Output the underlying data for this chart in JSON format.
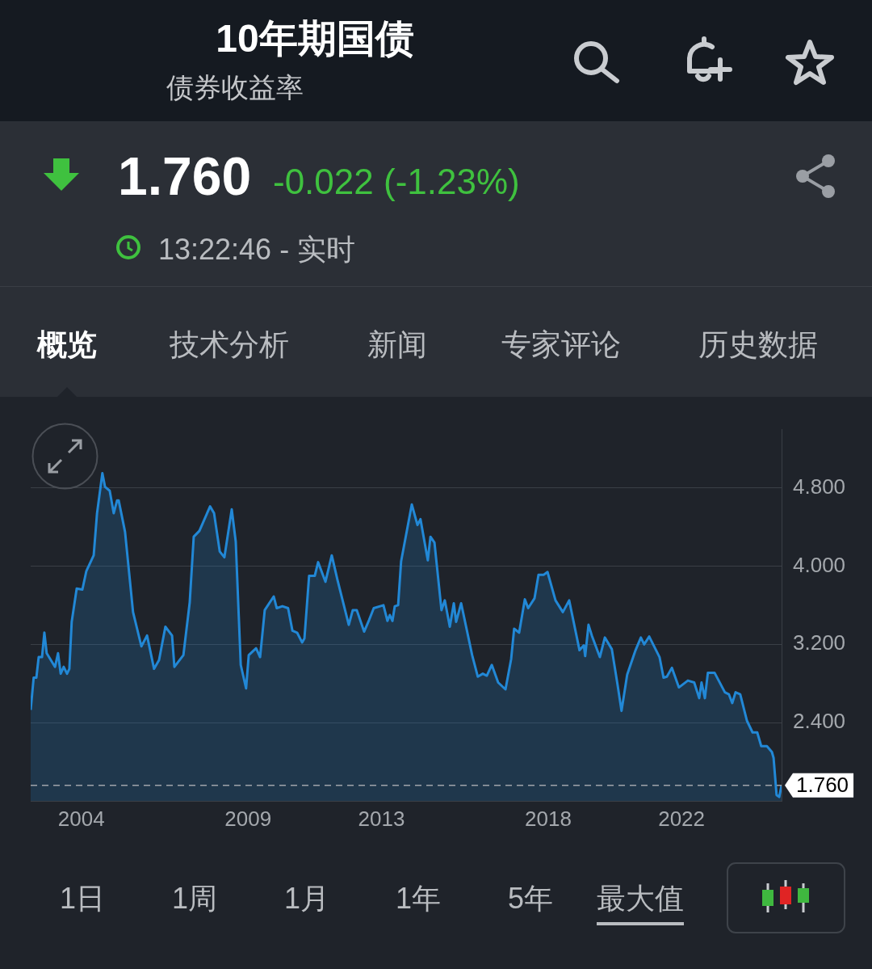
{
  "chart_data": {
    "type": "area",
    "title": "10年期国债",
    "subtitle": "债券收益率",
    "annotations": [
      "1.760",
      "-0.022 (-1.23%)",
      "13:22:46 - 实时",
      "概览",
      "技术分析",
      "新闻",
      "专家评论",
      "历史数据",
      "1日",
      "1周",
      "1月",
      "1年",
      "5年",
      "最大值"
    ],
    "x": [
      2002.48,
      2002.57,
      2002.65,
      2002.72,
      2002.82,
      2002.89,
      2002.96,
      2003.21,
      2003.3,
      2003.38,
      2003.47,
      2003.57,
      2003.64,
      2003.71,
      2003.86,
      2004.03,
      2004.15,
      2004.37,
      2004.47,
      2004.63,
      2004.71,
      2004.85,
      2004.97,
      2005.07,
      2005.12,
      2005.31,
      2005.55,
      2005.8,
      2005.97,
      2006.18,
      2006.33,
      2006.52,
      2006.72,
      2006.79,
      2007.06,
      2007.25,
      2007.37,
      2007.54,
      2007.86,
      2007.98,
      2008.15,
      2008.29,
      2008.51,
      2008.63,
      2008.78,
      2008.94,
      2009.02,
      2009.24,
      2009.36,
      2009.5,
      2009.77,
      2009.86,
      2010.03,
      2010.2,
      2010.33,
      2010.47,
      2010.62,
      2010.69,
      2010.83,
      2011.0,
      2011.1,
      2011.32,
      2011.51,
      2011.68,
      2012.02,
      2012.14,
      2012.26,
      2012.48,
      2012.63,
      2012.77,
      2013.06,
      2013.18,
      2013.25,
      2013.33,
      2013.4,
      2013.5,
      2013.59,
      2013.91,
      2014.08,
      2014.17,
      2014.39,
      2014.47,
      2014.59,
      2014.8,
      2014.9,
      2015.05,
      2015.17,
      2015.24,
      2015.39,
      2015.72,
      2015.89,
      2016.04,
      2016.16,
      2016.31,
      2016.5,
      2016.72,
      2016.89,
      2016.98,
      2017.13,
      2017.3,
      2017.4,
      2017.59,
      2017.71,
      2017.86,
      2017.98,
      2018.22,
      2018.44,
      2018.63,
      2018.94,
      2019.07,
      2019.11,
      2019.21,
      2019.31,
      2019.55,
      2019.7,
      2019.91,
      2020.08,
      2020.2,
      2020.37,
      2020.62,
      2020.78,
      2020.88,
      2021.03,
      2021.34,
      2021.46,
      2021.56,
      2021.71,
      2021.92,
      2022.19,
      2022.38,
      2022.53,
      2022.6,
      2022.7,
      2022.79,
      2022.99,
      2023.3,
      2023.42,
      2023.52,
      2023.62,
      2023.76,
      2023.96,
      2024.13,
      2024.27,
      2024.39,
      2024.56,
      2024.71,
      2024.76,
      2024.85,
      2024.93,
      2025.0
    ],
    "values": [
      2.53,
      2.86,
      2.86,
      3.07,
      3.07,
      3.32,
      3.11,
      2.97,
      3.11,
      2.9,
      2.97,
      2.9,
      2.95,
      3.43,
      3.77,
      3.76,
      3.95,
      4.11,
      4.54,
      4.95,
      4.81,
      4.77,
      4.54,
      4.67,
      4.67,
      4.35,
      3.53,
      3.18,
      3.29,
      2.95,
      3.04,
      3.38,
      3.29,
      2.97,
      3.09,
      3.63,
      4.3,
      4.36,
      4.61,
      4.54,
      4.15,
      4.09,
      4.58,
      4.25,
      2.99,
      2.75,
      3.09,
      3.16,
      3.07,
      3.55,
      3.69,
      3.57,
      3.59,
      3.57,
      3.34,
      3.32,
      3.22,
      3.26,
      3.9,
      3.9,
      4.04,
      3.84,
      4.11,
      3.86,
      3.4,
      3.55,
      3.55,
      3.33,
      3.45,
      3.57,
      3.6,
      3.44,
      3.5,
      3.44,
      3.59,
      3.6,
      4.05,
      4.63,
      4.42,
      4.48,
      4.06,
      4.3,
      4.24,
      3.55,
      3.65,
      3.38,
      3.62,
      3.43,
      3.62,
      3.09,
      2.87,
      2.9,
      2.88,
      2.99,
      2.81,
      2.74,
      3.05,
      3.36,
      3.32,
      3.66,
      3.57,
      3.67,
      3.91,
      3.91,
      3.94,
      3.65,
      3.53,
      3.65,
      3.14,
      3.19,
      3.08,
      3.4,
      3.29,
      3.07,
      3.27,
      3.15,
      2.79,
      2.52,
      2.89,
      3.14,
      3.27,
      3.2,
      3.28,
      3.07,
      2.86,
      2.87,
      2.96,
      2.76,
      2.83,
      2.81,
      2.65,
      2.81,
      2.65,
      2.91,
      2.91,
      2.71,
      2.69,
      2.6,
      2.71,
      2.69,
      2.42,
      2.3,
      2.3,
      2.16,
      2.16,
      2.1,
      2.04,
      1.66,
      1.64,
      1.76
    ],
    "color": "#2288d6",
    "xlim": [
      2002.48,
      2025.0
    ],
    "xticks": [
      2004,
      2009,
      2013,
      2018,
      2022
    ],
    "ylim": [
      1.6,
      5.4
    ],
    "yticks": [
      {
        "value": 1.6,
        "label": null
      },
      {
        "value": 2.4,
        "label": "2.400"
      },
      {
        "value": 3.2,
        "label": "3.200"
      },
      {
        "value": 4.0,
        "label": "4.000"
      },
      {
        "value": 4.8,
        "label": "4.800"
      }
    ],
    "ref_lines": [
      {
        "axis": "y",
        "value": 1.76,
        "label": "1.760",
        "color": "#a0a4aa",
        "line_style": "dashed"
      }
    ],
    "grid": "y",
    "legend": false,
    "marker": "none",
    "line_style": "solid"
  }
}
